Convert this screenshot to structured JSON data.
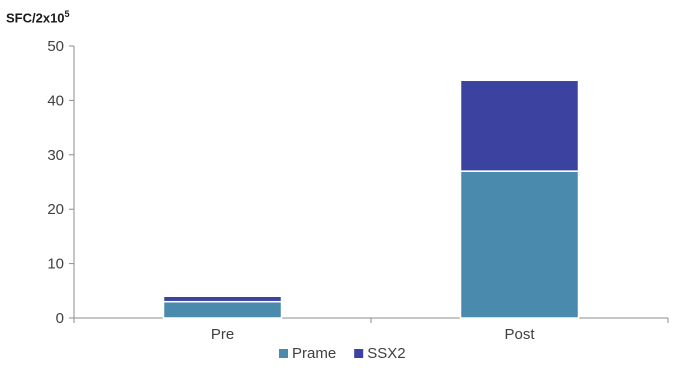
{
  "chart_data": {
    "type": "bar",
    "stacked": true,
    "categories": [
      "Pre",
      "Post"
    ],
    "series": [
      {
        "name": "Prame",
        "values": [
          3,
          27
        ],
        "color": "#4a8aac"
      },
      {
        "name": "SSX2",
        "values": [
          1,
          16.7
        ],
        "color": "#3b42a0"
      }
    ],
    "ylabel": "SFC/2x10",
    "ylabel_sup": "5",
    "ylim": [
      0,
      50
    ],
    "yticks": [
      0,
      10,
      20,
      30,
      40,
      50
    ],
    "grid": false,
    "legend_position": "bottom"
  }
}
